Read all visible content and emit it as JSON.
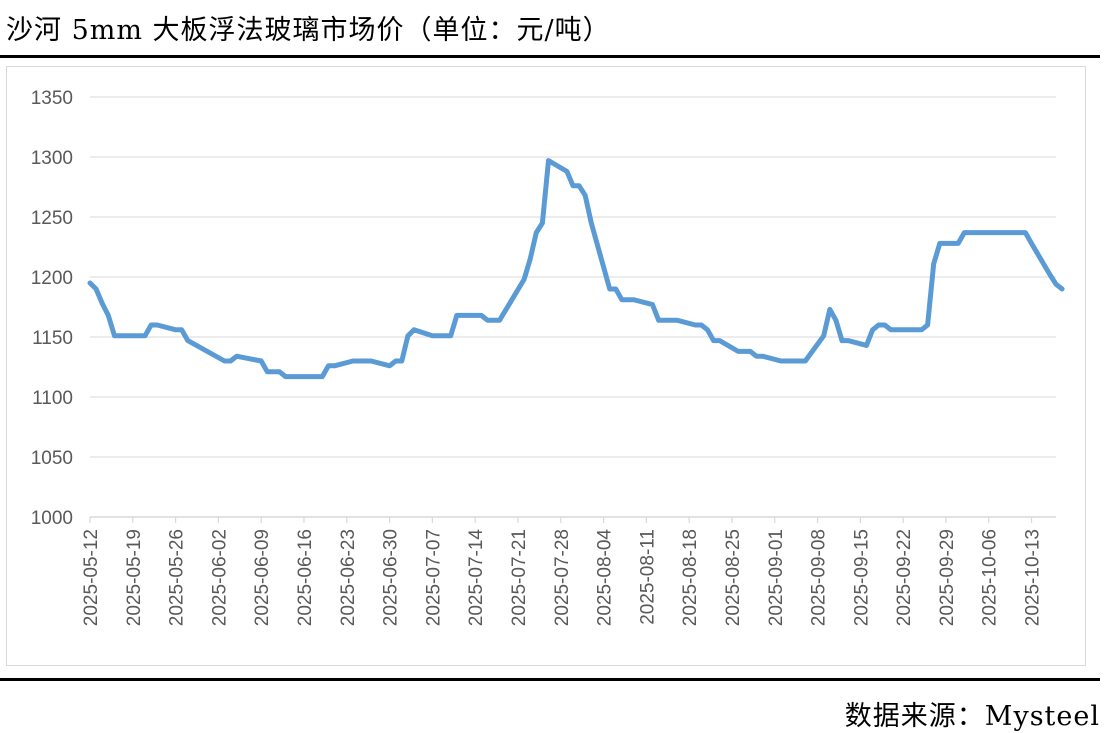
{
  "header": {
    "title": "沙河 5mm 大板浮法玻璃市场价（单位：元/吨）"
  },
  "footer": {
    "source": "数据来源：Mysteel"
  },
  "colors": {
    "line": "#5B9BD5",
    "grid": "#D9D9D9",
    "axis_text": "#595959"
  },
  "chart_data": {
    "type": "line",
    "title": "沙河 5mm 大板浮法玻璃市场价（单位：元/吨）",
    "xlabel": "",
    "ylabel": "",
    "ylim": [
      1000,
      1350
    ],
    "yticks": [
      1000,
      1050,
      1100,
      1150,
      1200,
      1250,
      1300,
      1350
    ],
    "xlim": [
      "2025-05-12",
      "2025-10-17"
    ],
    "xticks": [
      "2025-05-12",
      "2025-05-19",
      "2025-05-26",
      "2025-06-02",
      "2025-06-09",
      "2025-06-16",
      "2025-06-23",
      "2025-06-30",
      "2025-07-07",
      "2025-07-14",
      "2025-07-21",
      "2025-07-28",
      "2025-08-04",
      "2025-08-11",
      "2025-08-18",
      "2025-08-25",
      "2025-09-01",
      "2025-09-08",
      "2025-09-15",
      "2025-09-22",
      "2025-09-29",
      "2025-10-06",
      "2025-10-13"
    ],
    "grid": true,
    "legend": "none",
    "series": [
      {
        "name": "",
        "points": [
          [
            "2025-05-12",
            1195
          ],
          [
            "2025-05-13",
            1190
          ],
          [
            "2025-05-14",
            1178
          ],
          [
            "2025-05-15",
            1168
          ],
          [
            "2025-05-16",
            1151
          ],
          [
            "2025-05-19",
            1151
          ],
          [
            "2025-05-20",
            1151
          ],
          [
            "2025-05-21",
            1151
          ],
          [
            "2025-05-22",
            1160
          ],
          [
            "2025-05-23",
            1160
          ],
          [
            "2025-05-26",
            1156
          ],
          [
            "2025-05-27",
            1156
          ],
          [
            "2025-05-28",
            1147
          ],
          [
            "2025-06-03",
            1130
          ],
          [
            "2025-06-04",
            1130
          ],
          [
            "2025-06-05",
            1134
          ],
          [
            "2025-06-06",
            1133
          ],
          [
            "2025-06-09",
            1130
          ],
          [
            "2025-06-10",
            1121
          ],
          [
            "2025-06-12",
            1121
          ],
          [
            "2025-06-13",
            1117
          ],
          [
            "2025-06-19",
            1117
          ],
          [
            "2025-06-20",
            1126
          ],
          [
            "2025-06-21",
            1126
          ],
          [
            "2025-06-24",
            1130
          ],
          [
            "2025-06-27",
            1130
          ],
          [
            "2025-06-30",
            1126
          ],
          [
            "2025-07-01",
            1130
          ],
          [
            "2025-07-02",
            1130
          ],
          [
            "2025-07-03",
            1151
          ],
          [
            "2025-07-04",
            1156
          ],
          [
            "2025-07-07",
            1151
          ],
          [
            "2025-07-10",
            1151
          ],
          [
            "2025-07-11",
            1168
          ],
          [
            "2025-07-15",
            1168
          ],
          [
            "2025-07-16",
            1164
          ],
          [
            "2025-07-18",
            1164
          ],
          [
            "2025-07-22",
            1198
          ],
          [
            "2025-07-23",
            1215
          ],
          [
            "2025-07-24",
            1237
          ],
          [
            "2025-07-25",
            1245
          ],
          [
            "2025-07-26",
            1297
          ],
          [
            "2025-07-29",
            1288
          ],
          [
            "2025-07-30",
            1276
          ],
          [
            "2025-07-31",
            1276
          ],
          [
            "2025-08-01",
            1268
          ],
          [
            "2025-08-02",
            1245
          ],
          [
            "2025-08-05",
            1190
          ],
          [
            "2025-08-06",
            1190
          ],
          [
            "2025-08-07",
            1181
          ],
          [
            "2025-08-09",
            1181
          ],
          [
            "2025-08-12",
            1177
          ],
          [
            "2025-08-13",
            1164
          ],
          [
            "2025-08-16",
            1164
          ],
          [
            "2025-08-19",
            1160
          ],
          [
            "2025-08-20",
            1160
          ],
          [
            "2025-08-21",
            1156
          ],
          [
            "2025-08-22",
            1147
          ],
          [
            "2025-08-23",
            1147
          ],
          [
            "2025-08-26",
            1138
          ],
          [
            "2025-08-28",
            1138
          ],
          [
            "2025-08-29",
            1134
          ],
          [
            "2025-08-30",
            1134
          ],
          [
            "2025-09-02",
            1130
          ],
          [
            "2025-09-06",
            1130
          ],
          [
            "2025-09-09",
            1151
          ],
          [
            "2025-09-10",
            1173
          ],
          [
            "2025-09-11",
            1164
          ],
          [
            "2025-09-12",
            1147
          ],
          [
            "2025-09-13",
            1147
          ],
          [
            "2025-09-16",
            1143
          ],
          [
            "2025-09-17",
            1156
          ],
          [
            "2025-09-18",
            1160
          ],
          [
            "2025-09-19",
            1160
          ],
          [
            "2025-09-20",
            1156
          ],
          [
            "2025-09-25",
            1156
          ],
          [
            "2025-09-26",
            1160
          ],
          [
            "2025-09-27",
            1211
          ],
          [
            "2025-09-28",
            1228
          ],
          [
            "2025-10-01",
            1228
          ],
          [
            "2025-10-02",
            1237
          ],
          [
            "2025-10-11",
            1237
          ],
          [
            "2025-10-12",
            1237
          ],
          [
            "2025-10-13",
            1228
          ],
          [
            "2025-10-16",
            1202
          ],
          [
            "2025-10-17",
            1194
          ],
          [
            "2025-10-18",
            1190
          ]
        ]
      }
    ]
  }
}
